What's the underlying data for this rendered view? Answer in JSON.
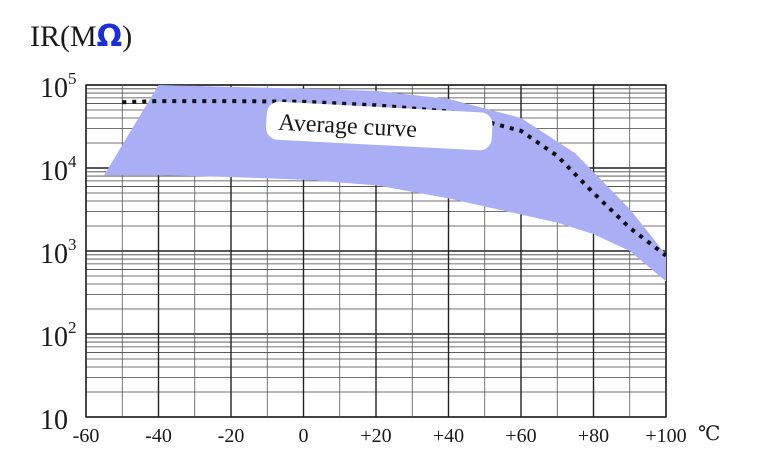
{
  "chart_data": {
    "type": "area",
    "title": "",
    "ylabel": {
      "prefix": "IR(M",
      "symbol": "Ω",
      "suffix": ")",
      "symbol_color": "#1b2fd6"
    },
    "xlabel": "",
    "x_unit": "℃",
    "xlim": [
      -60,
      100
    ],
    "ylim": [
      10,
      100000
    ],
    "y_scale": "log",
    "grid": true,
    "x_ticks": [
      {
        "value": -60,
        "label": "-60"
      },
      {
        "value": -40,
        "label": "-40"
      },
      {
        "value": -20,
        "label": "-20"
      },
      {
        "value": 0,
        "label": "0"
      },
      {
        "value": 20,
        "label": "+20"
      },
      {
        "value": 40,
        "label": "+40"
      },
      {
        "value": 60,
        "label": "+60"
      },
      {
        "value": 80,
        "label": "+80"
      },
      {
        "value": 100,
        "label": "+100"
      }
    ],
    "y_ticks": [
      {
        "value": 10,
        "base": "10",
        "exp": ""
      },
      {
        "value": 100,
        "base": "10",
        "exp": "2"
      },
      {
        "value": 1000,
        "base": "10",
        "exp": "3"
      },
      {
        "value": 10000,
        "base": "10",
        "exp": "4"
      },
      {
        "value": 100000,
        "base": "10",
        "exp": "5"
      }
    ],
    "band": {
      "color": "#a9aef5",
      "upper": [
        {
          "x": -55,
          "y": 8200
        },
        {
          "x": -40,
          "y": 100000
        },
        {
          "x": 0,
          "y": 90000
        },
        {
          "x": 20,
          "y": 85000
        },
        {
          "x": 40,
          "y": 68000
        },
        {
          "x": 60,
          "y": 40000
        },
        {
          "x": 75,
          "y": 15000
        },
        {
          "x": 90,
          "y": 3200
        },
        {
          "x": 100,
          "y": 900
        }
      ],
      "lower": [
        {
          "x": 100,
          "y": 430
        },
        {
          "x": 90,
          "y": 1000
        },
        {
          "x": 80,
          "y": 1600
        },
        {
          "x": 70,
          "y": 2200
        },
        {
          "x": 60,
          "y": 2750
        },
        {
          "x": 40,
          "y": 4300
        },
        {
          "x": 20,
          "y": 6200
        },
        {
          "x": 0,
          "y": 7200
        },
        {
          "x": -20,
          "y": 7800
        },
        {
          "x": -40,
          "y": 8200
        },
        {
          "x": -55,
          "y": 8200
        }
      ]
    },
    "series": [
      {
        "values": [
          {
            "x": -50,
            "y": 62000
          },
          {
            "x": -40,
            "y": 64000
          },
          {
            "x": -20,
            "y": 64000
          },
          {
            "x": 0,
            "y": 63000
          },
          {
            "x": 20,
            "y": 57000
          },
          {
            "x": 40,
            "y": 48000
          },
          {
            "x": 60,
            "y": 28000
          },
          {
            "x": 70,
            "y": 14000
          },
          {
            "x": 80,
            "y": 5000
          },
          {
            "x": 90,
            "y": 1900
          },
          {
            "x": 100,
            "y": 880
          }
        ],
        "color": "#111111",
        "style": "dotted"
      }
    ],
    "annotations": [
      {
        "text": "Average curve",
        "x": 20,
        "y": 28000
      }
    ]
  }
}
